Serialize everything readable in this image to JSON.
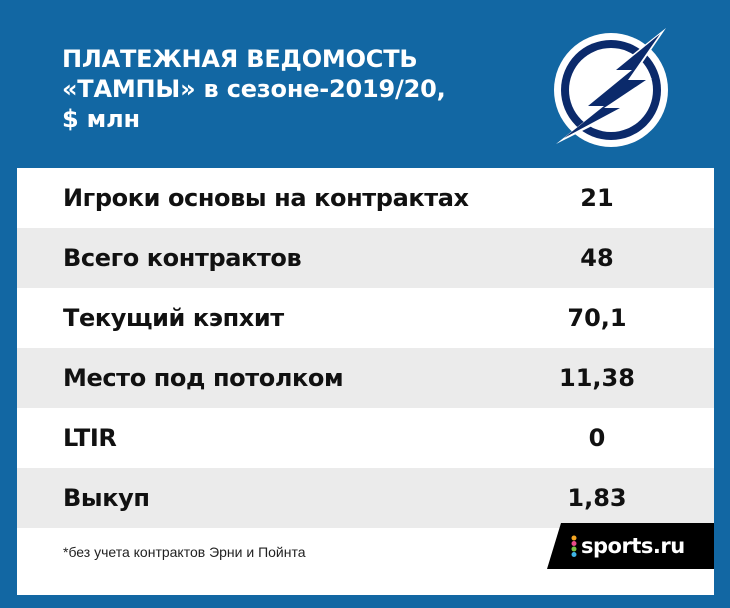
{
  "header": {
    "title_lines": [
      "ПЛАТЕЖНАЯ ВЕДОМОСТЬ",
      "«ТАМПЫ» в сезоне-2019/20,",
      "$ млн"
    ]
  },
  "logo": {
    "icon": "tampa-bay-lightning-logo",
    "colors": {
      "primary": "#0b2a6b",
      "background": "#ffffff"
    }
  },
  "table": {
    "rows": [
      {
        "label": "Игроки основы на контрактах",
        "value": "21"
      },
      {
        "label": "Всего контрактов",
        "value": "48"
      },
      {
        "label": "Текущий кэпхит",
        "value": "70,1"
      },
      {
        "label": "Место под потолком",
        "value": "11,38"
      },
      {
        "label": "LTIR",
        "value": "0"
      },
      {
        "label": "Выкуп",
        "value": "1,83"
      }
    ]
  },
  "footnote": "*без учета контрактов Эрни и Пойнта",
  "brand": {
    "text": "sports.ru"
  },
  "colors": {
    "frame": "#1267a3",
    "row_alt": "#ebebeb",
    "text": "#111111"
  }
}
